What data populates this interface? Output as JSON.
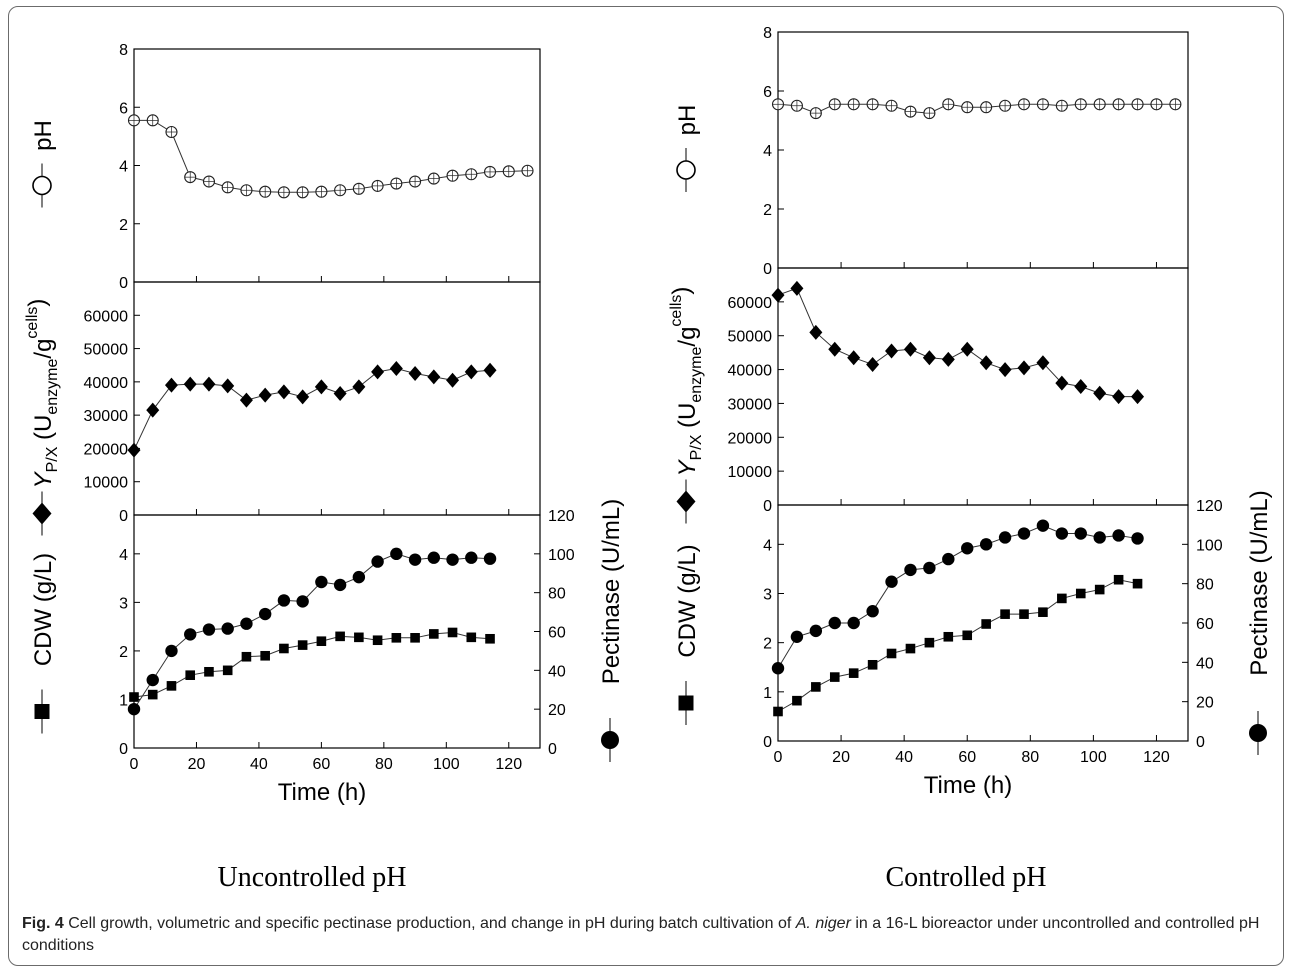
{
  "labels": {
    "left": "Uncontrolled pH",
    "right": "Controlled pH"
  },
  "caption": {
    "fig": "Fig. 4",
    "pre": " Cell growth, volumetric and specific pectinase production, and change in pH during batch cultivation of ",
    "species": "A. niger",
    "post": " in a 16-L bioreactor under uncontrolled and controlled pH conditions"
  },
  "axis_text": {
    "xlabel": "Time (h)",
    "ph": "pH",
    "yield_main": "Y",
    "yield_sub": "P/X",
    "yield_open": " (U",
    "yield_enz": "enzyme",
    "yield_mid": "/g",
    "yield_cells": "cells",
    "yield_close": ")",
    "cdw": "CDW (g/L)",
    "pect": "Pectinase (U/mL)"
  },
  "chart_data": [
    {
      "type": "line",
      "title": "Uncontrolled pH",
      "xlim": [
        0,
        130
      ],
      "xticks": [
        0,
        20,
        40,
        60,
        80,
        100,
        120
      ],
      "subplots": [
        {
          "ylabel": "pH",
          "ylim": [
            0,
            8
          ],
          "yticks": [
            0,
            2,
            4,
            6,
            8
          ],
          "series": [
            {
              "name": "pH",
              "marker": "open-circle",
              "x": [
                0,
                6,
                12,
                18,
                24,
                30,
                36,
                42,
                48,
                54,
                60,
                66,
                72,
                78,
                84,
                90,
                96,
                102,
                108,
                114,
                120,
                126
              ],
              "y": [
                5.55,
                5.55,
                5.15,
                3.6,
                3.45,
                3.25,
                3.15,
                3.1,
                3.08,
                3.08,
                3.1,
                3.15,
                3.2,
                3.3,
                3.38,
                3.45,
                3.55,
                3.65,
                3.7,
                3.78,
                3.8,
                3.82
              ]
            }
          ]
        },
        {
          "ylabel": "Y P/X (U enzyme/g cells)",
          "ylim": [
            0,
            70000
          ],
          "yticks": [
            0,
            10000,
            20000,
            30000,
            40000,
            50000,
            60000
          ],
          "series": [
            {
              "name": "Y P/X",
              "marker": "diamond",
              "x": [
                0,
                6,
                12,
                18,
                24,
                30,
                36,
                42,
                48,
                54,
                60,
                66,
                72,
                78,
                84,
                90,
                96,
                102,
                108,
                114
              ],
              "y": [
                19500,
                31500,
                39000,
                39300,
                39300,
                38800,
                34500,
                36000,
                37000,
                35500,
                38500,
                36500,
                38500,
                43000,
                44000,
                42500,
                41500,
                40500,
                43000,
                43500
              ]
            }
          ]
        },
        {
          "ylabel": "CDW (g/L)",
          "ylim": [
            0,
            4.8
          ],
          "yticks": [
            0,
            1,
            2,
            3,
            4
          ],
          "y2label": "Pectinase (U/mL)",
          "y2lim": [
            0,
            120
          ],
          "y2ticks": [
            0,
            20,
            40,
            60,
            80,
            100,
            120
          ],
          "series": [
            {
              "name": "CDW",
              "marker": "square",
              "axis": "left",
              "x": [
                0,
                6,
                12,
                18,
                24,
                30,
                36,
                42,
                48,
                54,
                60,
                66,
                72,
                78,
                84,
                90,
                96,
                102,
                108,
                114
              ],
              "y": [
                1.05,
                1.1,
                1.28,
                1.5,
                1.57,
                1.6,
                1.88,
                1.9,
                2.05,
                2.12,
                2.2,
                2.3,
                2.28,
                2.22,
                2.27,
                2.27,
                2.35,
                2.38,
                2.28,
                2.25
              ]
            },
            {
              "name": "Pectinase",
              "marker": "circle",
              "axis": "right",
              "x": [
                0,
                6,
                12,
                18,
                24,
                30,
                36,
                42,
                48,
                54,
                60,
                66,
                72,
                78,
                84,
                90,
                96,
                102,
                108,
                114
              ],
              "y": [
                20,
                35,
                50,
                58.5,
                61,
                61.5,
                64,
                69,
                76,
                75.5,
                85.5,
                84,
                88,
                96,
                100,
                97,
                98,
                97,
                98,
                97.5
              ]
            }
          ]
        }
      ]
    },
    {
      "type": "line",
      "title": "Controlled pH",
      "xlim": [
        0,
        130
      ],
      "xticks": [
        0,
        20,
        40,
        60,
        80,
        100,
        120
      ],
      "subplots": [
        {
          "ylabel": "pH",
          "ylim": [
            0,
            8
          ],
          "yticks": [
            0,
            2,
            4,
            6,
            8
          ],
          "series": [
            {
              "name": "pH",
              "marker": "open-circle",
              "x": [
                0,
                6,
                12,
                18,
                24,
                30,
                36,
                42,
                48,
                54,
                60,
                66,
                72,
                78,
                84,
                90,
                96,
                102,
                108,
                114,
                120,
                126
              ],
              "y": [
                5.55,
                5.5,
                5.25,
                5.55,
                5.55,
                5.55,
                5.5,
                5.3,
                5.25,
                5.55,
                5.45,
                5.45,
                5.5,
                5.55,
                5.55,
                5.5,
                5.55,
                5.55,
                5.55,
                5.55,
                5.55,
                5.55
              ]
            }
          ]
        },
        {
          "ylabel": "Y P/X (U enzyme/g cells)",
          "ylim": [
            0,
            70000
          ],
          "yticks": [
            0,
            10000,
            20000,
            30000,
            40000,
            50000,
            60000
          ],
          "series": [
            {
              "name": "Y P/X",
              "marker": "diamond",
              "x": [
                0,
                6,
                12,
                18,
                24,
                30,
                36,
                42,
                48,
                54,
                60,
                66,
                72,
                78,
                84,
                90,
                96,
                102,
                108,
                114
              ],
              "y": [
                62000,
                64000,
                51000,
                46000,
                43500,
                41500,
                45500,
                46000,
                43500,
                43000,
                46000,
                42000,
                40000,
                40500,
                42000,
                36000,
                35000,
                33000,
                32000,
                32000
              ]
            }
          ]
        },
        {
          "ylabel": "CDW (g/L)",
          "ylim": [
            0,
            4.8
          ],
          "yticks": [
            0,
            1,
            2,
            3,
            4
          ],
          "y2label": "Pectinase (U/mL)",
          "y2lim": [
            0,
            120
          ],
          "y2ticks": [
            0,
            20,
            40,
            60,
            80,
            100,
            120
          ],
          "series": [
            {
              "name": "CDW",
              "marker": "square",
              "axis": "left",
              "x": [
                0,
                6,
                12,
                18,
                24,
                30,
                36,
                42,
                48,
                54,
                60,
                66,
                72,
                78,
                84,
                90,
                96,
                102,
                108,
                114
              ],
              "y": [
                0.6,
                0.82,
                1.1,
                1.3,
                1.38,
                1.55,
                1.78,
                1.88,
                2.0,
                2.12,
                2.15,
                2.38,
                2.58,
                2.58,
                2.62,
                2.9,
                3.0,
                3.08,
                3.28,
                3.2
              ]
            },
            {
              "name": "Pectinase",
              "marker": "circle",
              "axis": "right",
              "x": [
                0,
                6,
                12,
                18,
                24,
                30,
                36,
                42,
                48,
                54,
                60,
                66,
                72,
                78,
                84,
                90,
                96,
                102,
                108,
                114
              ],
              "y": [
                37,
                53,
                56,
                60,
                60,
                66,
                81,
                87,
                88,
                92.5,
                98,
                100,
                103.5,
                105.5,
                109.5,
                105.5,
                105.5,
                103.5,
                104.5,
                103
              ]
            }
          ]
        }
      ]
    }
  ]
}
